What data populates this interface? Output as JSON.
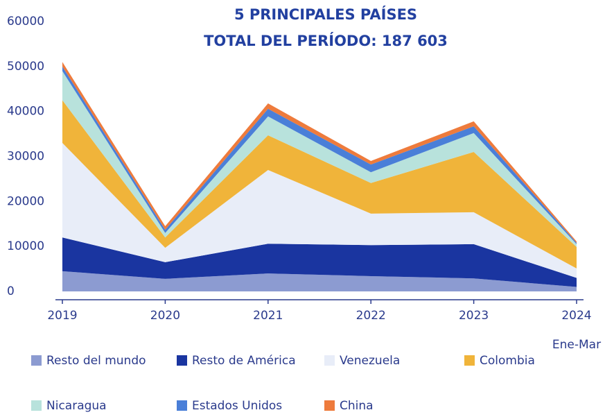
{
  "chart_data": {
    "type": "stacked_area",
    "title": [
      "5 PRINCIPALES PAÍSES",
      "TOTAL DEL PERÍODO: 187 603"
    ],
    "categories": [
      "2019",
      "2020",
      "2021",
      "2022",
      "2023",
      "2024"
    ],
    "x_note": "Ene-Mar",
    "series": [
      {
        "name": "Resto del mundo",
        "color": "#8c9bd1",
        "values": [
          4500,
          2800,
          4000,
          3400,
          2900,
          1000
        ]
      },
      {
        "name": "Resto de América",
        "color": "#1a35a0",
        "values": [
          7500,
          3700,
          6600,
          6900,
          7600,
          2000
        ]
      },
      {
        "name": "Venezuela",
        "color": "#e8edf8",
        "values": [
          21000,
          3200,
          16400,
          7000,
          7100,
          2100
        ]
      },
      {
        "name": "Colombia",
        "color": "#f0b43a",
        "values": [
          9500,
          2300,
          7700,
          6800,
          13400,
          4800
        ]
      },
      {
        "name": "Nicaragua",
        "color": "#b8e2dc",
        "values": [
          6500,
          1000,
          4200,
          2400,
          4200,
          600
        ]
      },
      {
        "name": "Estados Unidos",
        "color": "#4a7fd8",
        "values": [
          1000,
          700,
          1700,
          1700,
          1500,
          300
        ]
      },
      {
        "name": "China",
        "color": "#ee7b3c",
        "values": [
          1000,
          800,
          1200,
          800,
          1100,
          300
        ]
      }
    ],
    "ylim": [
      0,
      60000
    ],
    "yticks": [
      0,
      10000,
      20000,
      30000,
      40000,
      50000,
      60000
    ]
  }
}
